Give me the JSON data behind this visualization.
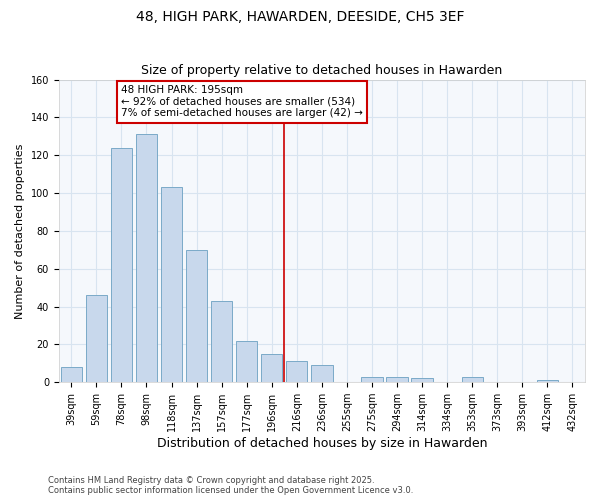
{
  "title": "48, HIGH PARK, HAWARDEN, DEESIDE, CH5 3EF",
  "subtitle": "Size of property relative to detached houses in Hawarden",
  "xlabel": "Distribution of detached houses by size in Hawarden",
  "ylabel": "Number of detached properties",
  "bar_labels": [
    "39sqm",
    "59sqm",
    "78sqm",
    "98sqm",
    "118sqm",
    "137sqm",
    "157sqm",
    "177sqm",
    "196sqm",
    "216sqm",
    "236sqm",
    "255sqm",
    "275sqm",
    "294sqm",
    "314sqm",
    "334sqm",
    "353sqm",
    "373sqm",
    "393sqm",
    "412sqm",
    "432sqm"
  ],
  "bar_values": [
    8,
    46,
    124,
    131,
    103,
    70,
    43,
    22,
    15,
    11,
    9,
    0,
    3,
    3,
    2,
    0,
    3,
    0,
    0,
    1,
    0
  ],
  "bar_color": "#c8d8ec",
  "bar_edge_color": "#7aaac8",
  "vline_x": 8.5,
  "vline_color": "#cc0000",
  "annotation_title": "48 HIGH PARK: 195sqm",
  "annotation_line1": "← 92% of detached houses are smaller (534)",
  "annotation_line2": "7% of semi-detached houses are larger (42) →",
  "annotation_box_color": "#ffffff",
  "annotation_box_edge_color": "#cc0000",
  "ylim": [
    0,
    160
  ],
  "yticks": [
    0,
    20,
    40,
    60,
    80,
    100,
    120,
    140,
    160
  ],
  "footer1": "Contains HM Land Registry data © Crown copyright and database right 2025.",
  "footer2": "Contains public sector information licensed under the Open Government Licence v3.0.",
  "background_color": "#ffffff",
  "plot_bg_color": "#f5f8fc",
  "grid_color": "#d8e4f0",
  "title_fontsize": 10,
  "subtitle_fontsize": 9,
  "xlabel_fontsize": 9,
  "ylabel_fontsize": 8,
  "tick_fontsize": 7,
  "footer_fontsize": 6,
  "ann_fontsize": 7.5
}
